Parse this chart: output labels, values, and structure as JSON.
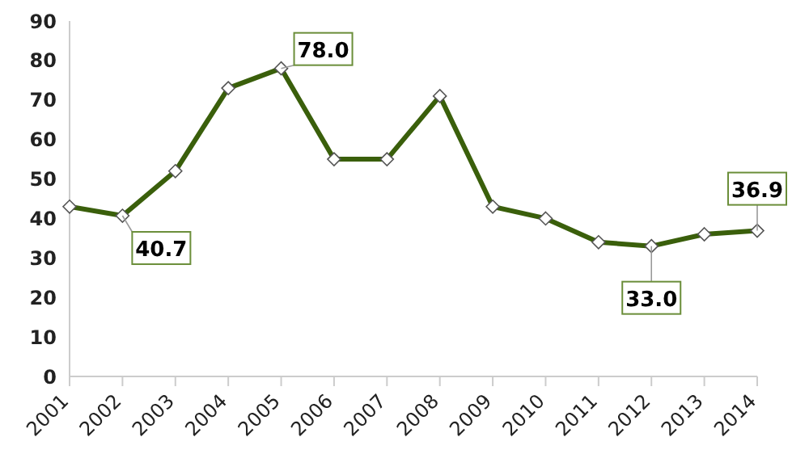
{
  "chart_data": {
    "type": "line",
    "categories": [
      "2001",
      "2002",
      "2003",
      "2004",
      "2005",
      "2006",
      "2007",
      "2008",
      "2009",
      "2010",
      "2011",
      "2012",
      "2013",
      "2014"
    ],
    "values": [
      43,
      40.7,
      52,
      73,
      78.0,
      55,
      55,
      71,
      43,
      40,
      34,
      33.0,
      36,
      36.9
    ],
    "value_labels": [
      null,
      "40.7",
      null,
      null,
      "78.0",
      null,
      null,
      null,
      null,
      null,
      null,
      "33.0",
      null,
      "36.9"
    ],
    "color": "#3a5f0b",
    "marker": "diamond",
    "line_style": "solid",
    "grid": false,
    "legend": false,
    "ylim": [
      0,
      90
    ],
    "yticks": [
      0,
      10,
      20,
      30,
      40,
      50,
      60,
      70,
      80,
      90
    ]
  }
}
